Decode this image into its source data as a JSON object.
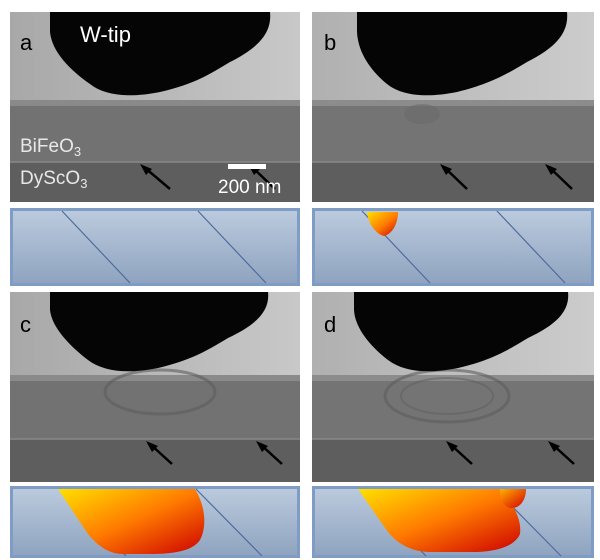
{
  "panels": [
    {
      "label": "a",
      "tip_label": "W-tip",
      "film_label": "BiFeO",
      "film_sub": "3",
      "substrate_label": "DyScO",
      "substrate_sub": "3",
      "scale_label": "200 nm"
    },
    {
      "label": "b"
    },
    {
      "label": "c"
    },
    {
      "label": "d"
    }
  ],
  "colors": {
    "tip": "#050505",
    "background": "#b4b4b4",
    "film": "#6a6a6a",
    "substrate": "#5a5a5a",
    "schematic_fill_top": "#b8c8dc",
    "schematic_fill_bottom": "#8fa4c0",
    "schematic_border": "#7f9cc4",
    "domain_light": "#ffe000",
    "domain_dark": "#cc0000"
  }
}
